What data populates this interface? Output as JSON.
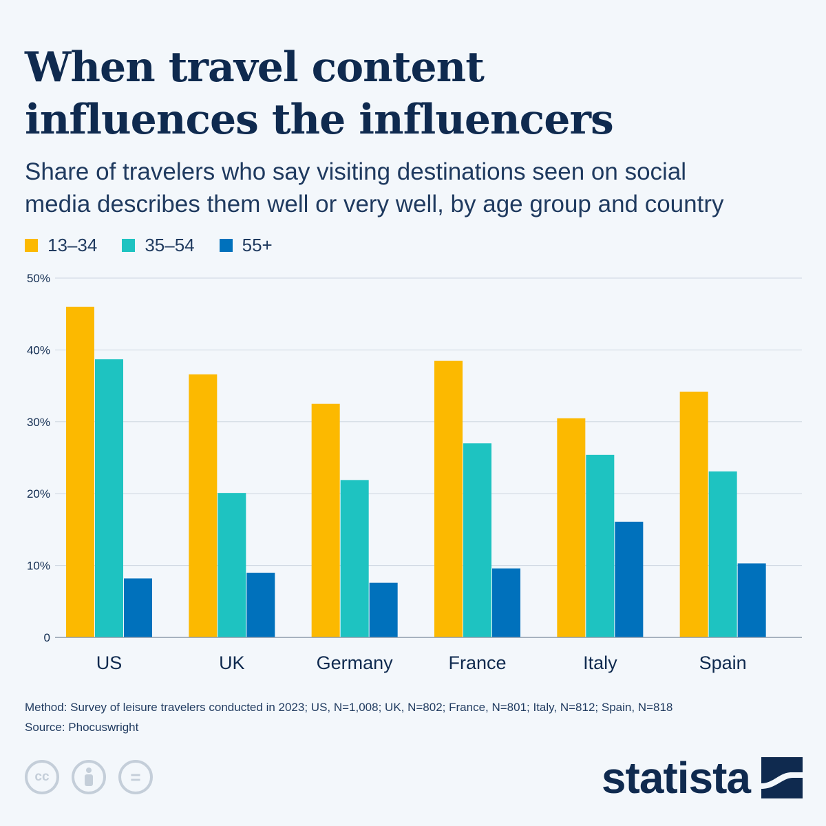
{
  "title_lines": [
    "When travel content",
    "influences the influencers"
  ],
  "subtitle_lines": [
    "Share of travelers who say visiting destinations seen on social",
    "media describes them well or very well, by age group and country"
  ],
  "footnote": {
    "method": "Method: Survey of leisure travelers conducted in 2023; US, N=1,008; UK, N=802; France, N=801; Italy, N=812; Spain, N=818",
    "source": "Source: Phocuswright"
  },
  "brand": {
    "name": "statista"
  },
  "license_icons": [
    "creative-commons-icon",
    "attribution-person-icon",
    "no-derivatives-equals-icon"
  ],
  "license_text": {
    "cc": "cc",
    "nd": "="
  },
  "colors": {
    "s1": "#fcb900",
    "s2": "#1ec3c1",
    "s3": "#0071bc",
    "grid": "#cdd6e0",
    "axis": "#8e9bab",
    "text": "#0f2a4f"
  },
  "chart_data": {
    "type": "bar",
    "categories": [
      "US",
      "UK",
      "Germany",
      "France",
      "Italy",
      "Spain"
    ],
    "series": [
      {
        "name": "13–34",
        "color": "#fcb900",
        "values": [
          46,
          36.6,
          32.5,
          38.5,
          30.5,
          34.2
        ]
      },
      {
        "name": "35–54",
        "color": "#1ec3c1",
        "values": [
          38.7,
          20.1,
          21.9,
          27,
          25.4,
          23.1
        ]
      },
      {
        "name": "55+",
        "color": "#0071bc",
        "values": [
          8.2,
          9,
          7.6,
          9.6,
          16.1,
          10.3
        ]
      }
    ],
    "ylim": [
      0,
      50
    ],
    "yticks": [
      0,
      10,
      20,
      30,
      40,
      50
    ],
    "ytick_labels": [
      "0",
      "10%",
      "20%",
      "30%",
      "40%",
      "50%"
    ],
    "xlabel": "",
    "ylabel": "",
    "legend": "top-left",
    "grid": true
  }
}
